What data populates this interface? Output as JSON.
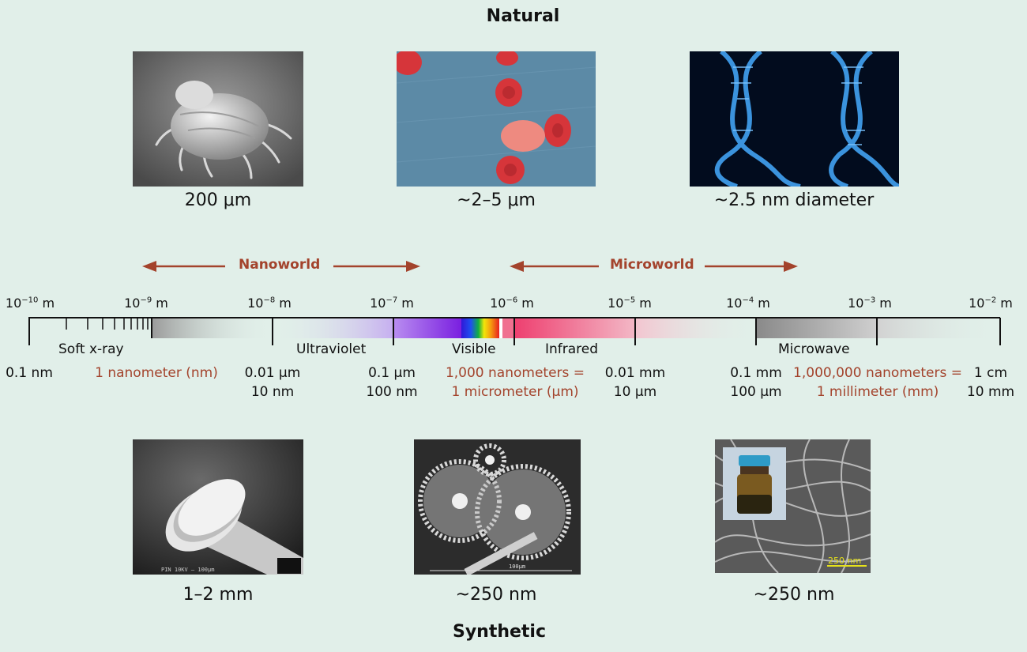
{
  "natural": {
    "title": "Natural",
    "items": [
      {
        "caption": "200 μm"
      },
      {
        "caption": "~2–5 μm"
      },
      {
        "caption": "~2.5 nm diameter"
      }
    ]
  },
  "synthetic": {
    "title": "Synthetic",
    "items": [
      {
        "caption": "1–2 mm",
        "photo_text": "PIN  10KV   — 100μm"
      },
      {
        "caption": "~250 nm",
        "photo_text": "100μm"
      },
      {
        "caption": "~250 nm",
        "photo_text": "250 nm"
      }
    ]
  },
  "worlds": {
    "nanoworld": "Nanoworld",
    "microworld": "Microworld"
  },
  "scale": {
    "powers": [
      {
        "base": "10",
        "exp": "−10",
        "unit": " m"
      },
      {
        "base": "10",
        "exp": "−9",
        "unit": " m"
      },
      {
        "base": "10",
        "exp": "−8",
        "unit": " m"
      },
      {
        "base": "10",
        "exp": "−7",
        "unit": " m"
      },
      {
        "base": "10",
        "exp": "−6",
        "unit": " m"
      },
      {
        "base": "10",
        "exp": "−5",
        "unit": " m"
      },
      {
        "base": "10",
        "exp": "−4",
        "unit": " m"
      },
      {
        "base": "10",
        "exp": "−3",
        "unit": " m"
      },
      {
        "base": "10",
        "exp": "−2",
        "unit": " m"
      }
    ],
    "bands": {
      "soft_xray": "Soft x-ray",
      "ultraviolet": "Ultraviolet",
      "visible": "Visible",
      "infrared": "Infrared",
      "microwave": "Microwave"
    },
    "measures": {
      "m0": "0.1 nm",
      "nm_def": "1 nanometer (nm)",
      "m2a": "0.01 μm",
      "m2b": "10 nm",
      "m3a": "0.1 μm",
      "m3b": "100 nm",
      "um_def_a": "1,000 nanometers =",
      "um_def_b": "1 micrometer (μm)",
      "m5a": "0.01 mm",
      "m5b": "10 μm",
      "m6a": "0.1 mm",
      "m6b": "100 μm",
      "mm_def_a": "1,000,000 nanometers =",
      "mm_def_b": "1 millimeter (mm)",
      "m8a": "1 cm",
      "m8b": "10 mm"
    }
  },
  "colors": {
    "background": "#e1efe9",
    "accent": "#a3432c"
  }
}
